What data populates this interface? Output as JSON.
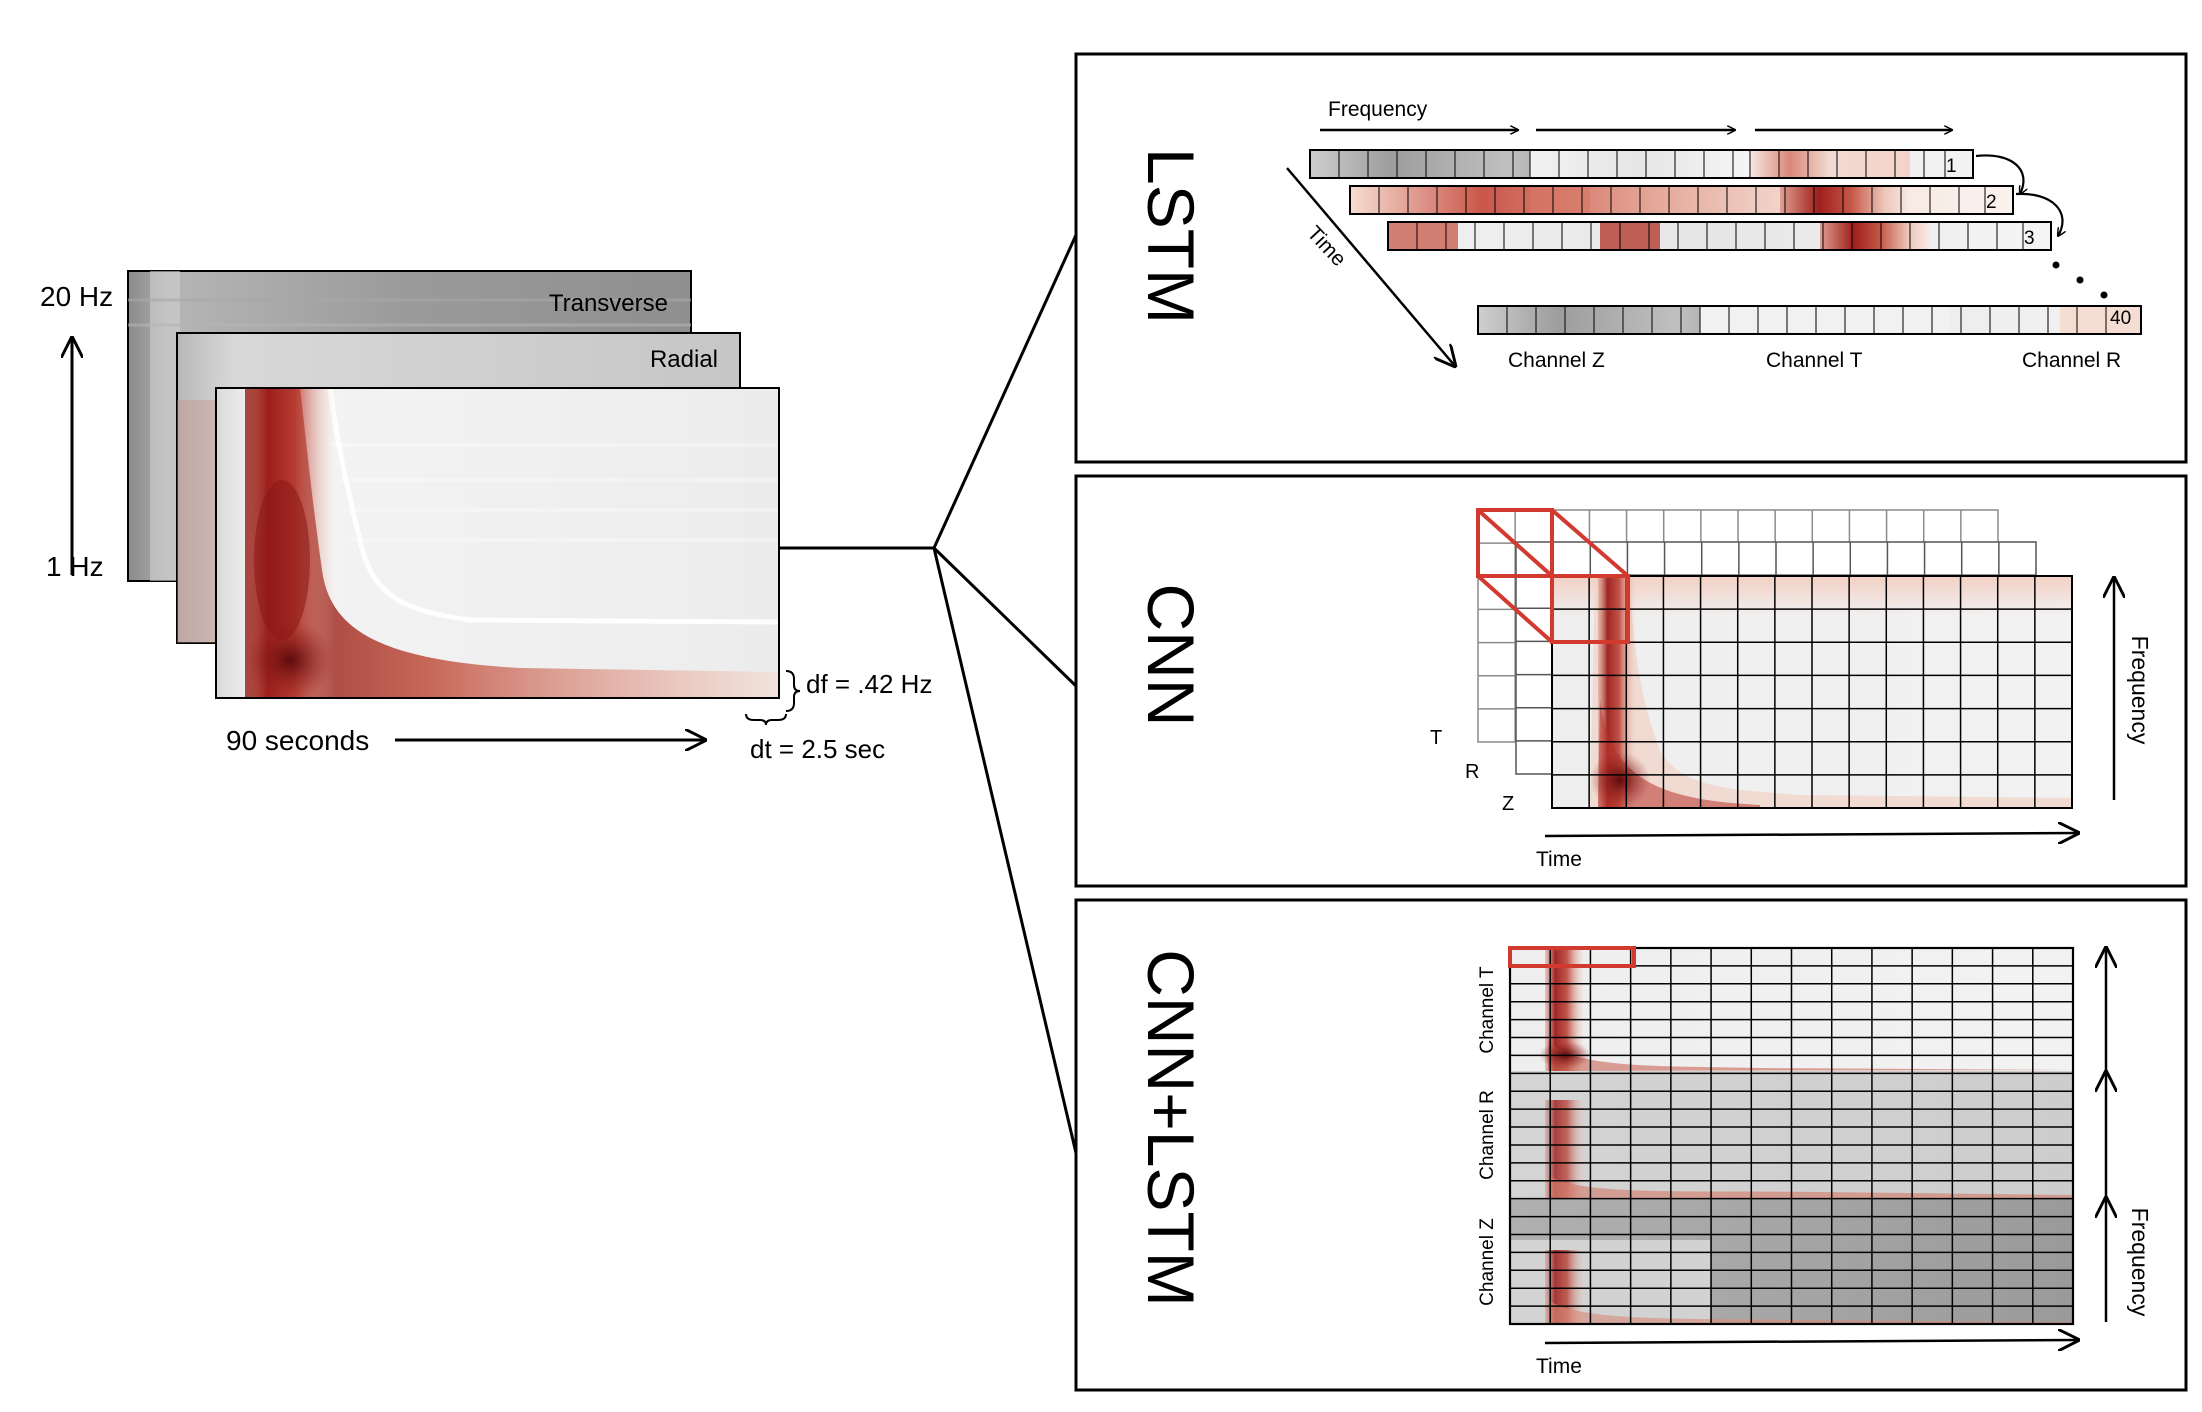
{
  "spectrogram": {
    "freq_high": "20 Hz",
    "freq_low": "1 Hz",
    "duration": "90 seconds",
    "df": "df = .42 Hz",
    "dt": "dt = 2.5 sec",
    "channels": [
      "Transverse",
      "Radial"
    ]
  },
  "panels": {
    "lstm": {
      "title": "LSTM",
      "frequency": "Frequency",
      "time": "Time",
      "row_numbers": [
        "1",
        "2",
        "3",
        "40"
      ],
      "channels": [
        "Channel Z",
        "Channel T",
        "Channel R"
      ]
    },
    "cnn": {
      "title": "CNN",
      "channel_letters": [
        "T",
        "R",
        "Z"
      ],
      "time": "Time",
      "frequency": "Frequency"
    },
    "cnn_lstm": {
      "title": "CNN+LSTM",
      "channels": [
        "Channel T",
        "Channel R",
        "Channel Z"
      ],
      "time": "Time",
      "frequency": "Frequency"
    }
  },
  "colors": {
    "accent_red": "#d33a2f",
    "spectrogram_dark": "#7a0f12",
    "background_gray": "#e2e2e2"
  }
}
